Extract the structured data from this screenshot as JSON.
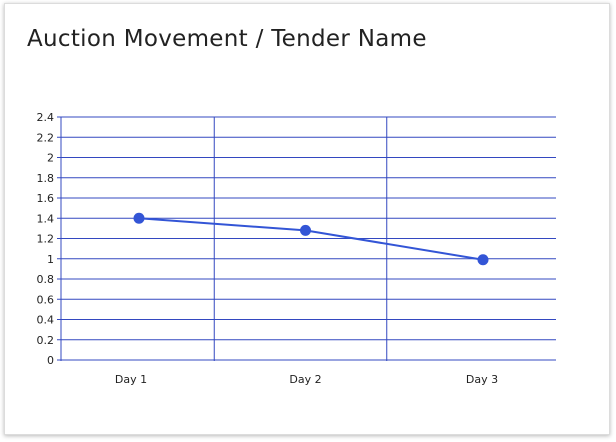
{
  "page": {
    "title": "Auction Movement / Tender Name"
  },
  "colors": {
    "grid": "#3348c0",
    "series": "#3355d6",
    "text": "#222222"
  },
  "chart_data": {
    "type": "line",
    "title": "Auction Movement / Tender Name",
    "xlabel": "",
    "ylabel": "",
    "categories": [
      "Day 1",
      "Day 2",
      "Day 3"
    ],
    "series": [
      {
        "values": [
          1.4,
          1.28,
          0.99
        ]
      }
    ],
    "yticks": [
      0,
      0.2,
      0.4,
      0.6,
      0.8,
      1,
      1.2,
      1.4,
      1.6,
      1.8,
      2,
      2.2,
      2.4
    ],
    "ytick_labels": [
      "0",
      "0.2",
      "0.4",
      "0.6",
      "0.8",
      "1",
      "1.2",
      "1.4",
      "1.6",
      "1.8",
      "2",
      "2.2",
      "2.4"
    ],
    "ylim": [
      0,
      2.4
    ],
    "grid": true,
    "legend": "none"
  }
}
